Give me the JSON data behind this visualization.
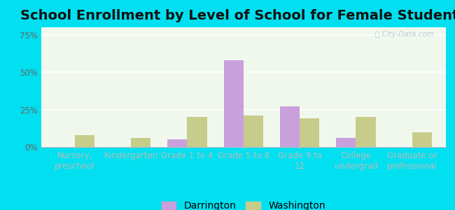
{
  "title": "School Enrollment by Level of School for Female Students",
  "categories": [
    "Nursery,\npreschool",
    "Kindergarten",
    "Grade 1 to 4",
    "Grade 5 to 8",
    "Grade 9 to\n12",
    "College\nundergrad",
    "Graduate or\nprofessional"
  ],
  "darrington": [
    0,
    0,
    5,
    58,
    27,
    6,
    0
  ],
  "washington": [
    8,
    6,
    20,
    21,
    19,
    20,
    10
  ],
  "darrington_color": "#c9a0dc",
  "washington_color": "#c8cc8a",
  "bar_width": 0.35,
  "ylim": [
    0,
    80
  ],
  "yticks": [
    0,
    25,
    50,
    75
  ],
  "ytick_labels": [
    "0%",
    "25%",
    "50%",
    "75%"
  ],
  "legend_darrington": "Darrington",
  "legend_washington": "Washington",
  "bg_outer": "#00e0f0",
  "bg_plot": "#f0f8ee",
  "title_fontsize": 14,
  "axis_fontsize": 8.5,
  "legend_fontsize": 10
}
